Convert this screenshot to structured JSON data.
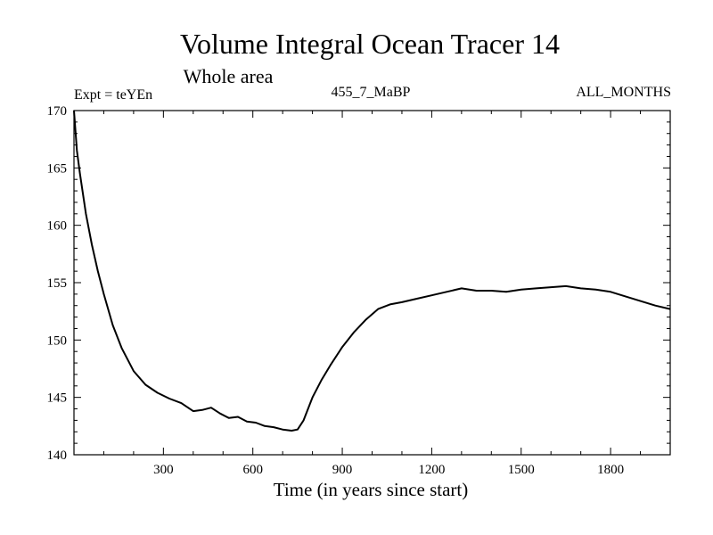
{
  "chart_data": {
    "type": "line",
    "title": "Volume Integral Ocean Tracer 14",
    "subtitle": "Whole area",
    "header_left": "Expt = teYEn",
    "header_center": "455_7_MaBP",
    "header_right": "ALL_MONTHS",
    "xlabel": "Time (in years since start)",
    "ylabel": "",
    "xlim": [
      0,
      2000
    ],
    "ylim": [
      140,
      170
    ],
    "xticks": [
      300,
      600,
      900,
      1200,
      1500,
      1800
    ],
    "yticks": [
      140,
      145,
      150,
      155,
      160,
      165,
      170
    ],
    "grid": false,
    "line_color": "#000000",
    "series": [
      {
        "name": "Volume Integral Ocean Tracer 14",
        "x": [
          0,
          10,
          20,
          40,
          60,
          80,
          100,
          130,
          160,
          200,
          240,
          280,
          320,
          360,
          400,
          430,
          460,
          490,
          520,
          550,
          580,
          610,
          640,
          670,
          700,
          730,
          750,
          770,
          800,
          830,
          860,
          900,
          940,
          980,
          1020,
          1060,
          1100,
          1150,
          1200,
          1250,
          1300,
          1350,
          1400,
          1450,
          1500,
          1550,
          1600,
          1650,
          1700,
          1750,
          1800,
          1850,
          1900,
          1950,
          2000
        ],
        "y": [
          170,
          166.5,
          164.5,
          161.0,
          158.3,
          156.0,
          154.0,
          151.3,
          149.3,
          147.3,
          146.1,
          145.4,
          144.9,
          144.5,
          143.8,
          143.9,
          144.1,
          143.6,
          143.2,
          143.3,
          142.9,
          142.8,
          142.5,
          142.4,
          142.2,
          142.1,
          142.2,
          143.0,
          145.0,
          146.5,
          147.8,
          149.4,
          150.7,
          151.8,
          152.7,
          153.1,
          153.3,
          153.6,
          153.9,
          154.2,
          154.5,
          154.3,
          154.3,
          154.2,
          154.4,
          154.5,
          154.6,
          154.7,
          154.5,
          154.4,
          154.2,
          153.8,
          153.4,
          153.0,
          152.7
        ]
      }
    ]
  }
}
